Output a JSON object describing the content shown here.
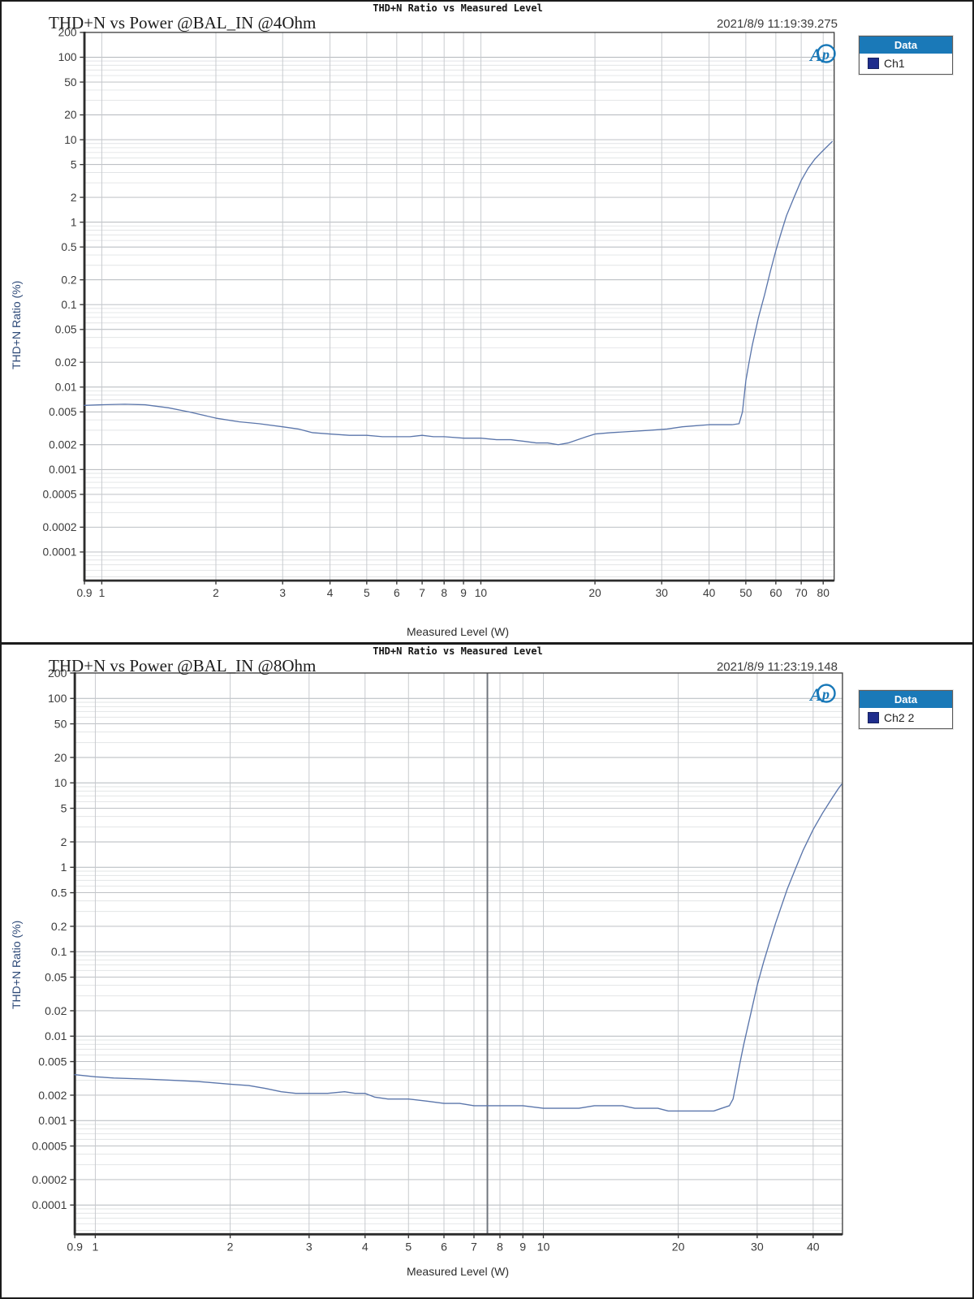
{
  "page": {
    "background": "#ffffff",
    "border_color": "#1b1b1b"
  },
  "chart_data": [
    {
      "type": "line",
      "grid": true,
      "header_title": "THD+N Ratio vs Measured Level",
      "title": "THD+N vs Power @BAL_IN @4Ohm",
      "timestamp": "2021/8/9 11:19:39.275",
      "logo_text": "Ap",
      "legend": {
        "header": "Data",
        "header_bg": "#1a79b8",
        "entries": [
          {
            "label": "Ch1",
            "color": "#1f2d8c"
          }
        ]
      },
      "x_axis": {
        "label": "Measured Level (W)",
        "scale": "log",
        "min": 0.9,
        "max": 85.5,
        "ticks": [
          0.9,
          1,
          2,
          3,
          4,
          5,
          6,
          7,
          8,
          9,
          10,
          20,
          30,
          40,
          50,
          60,
          70,
          80
        ]
      },
      "y_axis": {
        "label": "THD+N Ratio (%)",
        "scale": "log",
        "max": 200,
        "min_edge": 4.5e-05,
        "ticks": [
          200,
          100,
          50,
          20,
          10,
          5,
          2,
          1,
          0.5,
          0.2,
          0.1,
          0.05,
          0.02,
          0.01,
          0.005,
          0.002,
          0.001,
          0.0005,
          0.0002,
          0.0001
        ]
      },
      "series": [
        {
          "name": "Ch1",
          "color": "#5b76ab",
          "points": [
            [
              0.9,
              0.006
            ],
            [
              1.0,
              0.0061
            ],
            [
              1.15,
              0.0062
            ],
            [
              1.3,
              0.0061
            ],
            [
              1.5,
              0.0056
            ],
            [
              1.7,
              0.005
            ],
            [
              2.0,
              0.0042
            ],
            [
              2.3,
              0.0038
            ],
            [
              2.6,
              0.0036
            ],
            [
              3.0,
              0.0033
            ],
            [
              3.3,
              0.0031
            ],
            [
              3.6,
              0.0028
            ],
            [
              4.0,
              0.0027
            ],
            [
              4.5,
              0.0026
            ],
            [
              5.0,
              0.0026
            ],
            [
              5.5,
              0.0025
            ],
            [
              6.0,
              0.0025
            ],
            [
              6.5,
              0.0025
            ],
            [
              7.0,
              0.0026
            ],
            [
              7.5,
              0.0025
            ],
            [
              8.0,
              0.0025
            ],
            [
              9.0,
              0.0024
            ],
            [
              10,
              0.0024
            ],
            [
              11,
              0.0023
            ],
            [
              12,
              0.0023
            ],
            [
              13,
              0.0022
            ],
            [
              14,
              0.0021
            ],
            [
              15,
              0.0021
            ],
            [
              16,
              0.002
            ],
            [
              17,
              0.0021
            ],
            [
              18,
              0.0023
            ],
            [
              19,
              0.0025
            ],
            [
              20,
              0.0027
            ],
            [
              22,
              0.0028
            ],
            [
              25,
              0.0029
            ],
            [
              28,
              0.003
            ],
            [
              31,
              0.0031
            ],
            [
              34,
              0.0033
            ],
            [
              37,
              0.0034
            ],
            [
              40,
              0.0035
            ],
            [
              43,
              0.0035
            ],
            [
              46,
              0.0035
            ],
            [
              48,
              0.0036
            ],
            [
              49,
              0.005
            ],
            [
              50,
              0.012
            ],
            [
              51,
              0.02
            ],
            [
              52,
              0.032
            ],
            [
              54,
              0.07
            ],
            [
              56,
              0.13
            ],
            [
              58,
              0.25
            ],
            [
              60,
              0.45
            ],
            [
              62,
              0.75
            ],
            [
              64,
              1.2
            ],
            [
              67,
              2.0
            ],
            [
              70,
              3.2
            ],
            [
              73,
              4.5
            ],
            [
              76,
              5.8
            ],
            [
              79,
              7.0
            ],
            [
              82,
              8.3
            ],
            [
              84.5,
              9.5
            ]
          ]
        }
      ]
    },
    {
      "type": "line",
      "grid": true,
      "header_title": "THD+N Ratio vs Measured Level",
      "title": "THD+N vs Power @BAL_IN @8Ohm",
      "timestamp": "2021/8/9 11:23:19.148",
      "logo_text": "Ap",
      "cursor_x": 7.5,
      "legend": {
        "header": "Data",
        "header_bg": "#1a79b8",
        "entries": [
          {
            "label": "Ch2 2",
            "color": "#1f2d8c"
          }
        ]
      },
      "x_axis": {
        "label": "Measured Level (W)",
        "scale": "log",
        "min": 0.9,
        "max": 46.5,
        "ticks": [
          0.9,
          1,
          2,
          3,
          4,
          5,
          6,
          7,
          8,
          9,
          10,
          20,
          30,
          40
        ]
      },
      "y_axis": {
        "label": "THD+N Ratio (%)",
        "scale": "log",
        "max": 200,
        "min_edge": 4.5e-05,
        "ticks": [
          200,
          100,
          50,
          20,
          10,
          5,
          2,
          1,
          0.5,
          0.2,
          0.1,
          0.05,
          0.02,
          0.01,
          0.005,
          0.002,
          0.001,
          0.0005,
          0.0002,
          0.0001
        ]
      },
      "series": [
        {
          "name": "Ch2",
          "color": "#5b76ab",
          "points": [
            [
              0.9,
              0.0035
            ],
            [
              1.0,
              0.0033
            ],
            [
              1.1,
              0.0032
            ],
            [
              1.3,
              0.0031
            ],
            [
              1.5,
              0.003
            ],
            [
              1.7,
              0.0029
            ],
            [
              2.0,
              0.0027
            ],
            [
              2.2,
              0.0026
            ],
            [
              2.4,
              0.0024
            ],
            [
              2.6,
              0.0022
            ],
            [
              2.8,
              0.0021
            ],
            [
              3.0,
              0.0021
            ],
            [
              3.3,
              0.0021
            ],
            [
              3.6,
              0.0022
            ],
            [
              3.8,
              0.0021
            ],
            [
              4.0,
              0.0021
            ],
            [
              4.2,
              0.0019
            ],
            [
              4.5,
              0.0018
            ],
            [
              5.0,
              0.0018
            ],
            [
              5.5,
              0.0017
            ],
            [
              6.0,
              0.0016
            ],
            [
              6.5,
              0.0016
            ],
            [
              7.0,
              0.0015
            ],
            [
              7.5,
              0.0015
            ],
            [
              8.0,
              0.0015
            ],
            [
              9.0,
              0.0015
            ],
            [
              10,
              0.0014
            ],
            [
              11,
              0.0014
            ],
            [
              12,
              0.0014
            ],
            [
              13,
              0.0015
            ],
            [
              14,
              0.0015
            ],
            [
              15,
              0.0015
            ],
            [
              16,
              0.0014
            ],
            [
              17,
              0.0014
            ],
            [
              18,
              0.0014
            ],
            [
              19,
              0.0013
            ],
            [
              20,
              0.0013
            ],
            [
              21,
              0.0013
            ],
            [
              22,
              0.0013
            ],
            [
              23,
              0.0013
            ],
            [
              24,
              0.0013
            ],
            [
              25,
              0.0014
            ],
            [
              26,
              0.0015
            ],
            [
              26.5,
              0.0018
            ],
            [
              27,
              0.003
            ],
            [
              27.5,
              0.005
            ],
            [
              28,
              0.008
            ],
            [
              29,
              0.018
            ],
            [
              30,
              0.04
            ],
            [
              31,
              0.075
            ],
            [
              32,
              0.13
            ],
            [
              33,
              0.22
            ],
            [
              34,
              0.35
            ],
            [
              35,
              0.55
            ],
            [
              36.5,
              0.95
            ],
            [
              38,
              1.6
            ],
            [
              40,
              2.8
            ],
            [
              42,
              4.4
            ],
            [
              44,
              6.5
            ],
            [
              45.5,
              8.5
            ],
            [
              46.3,
              9.6
            ]
          ]
        }
      ]
    }
  ]
}
